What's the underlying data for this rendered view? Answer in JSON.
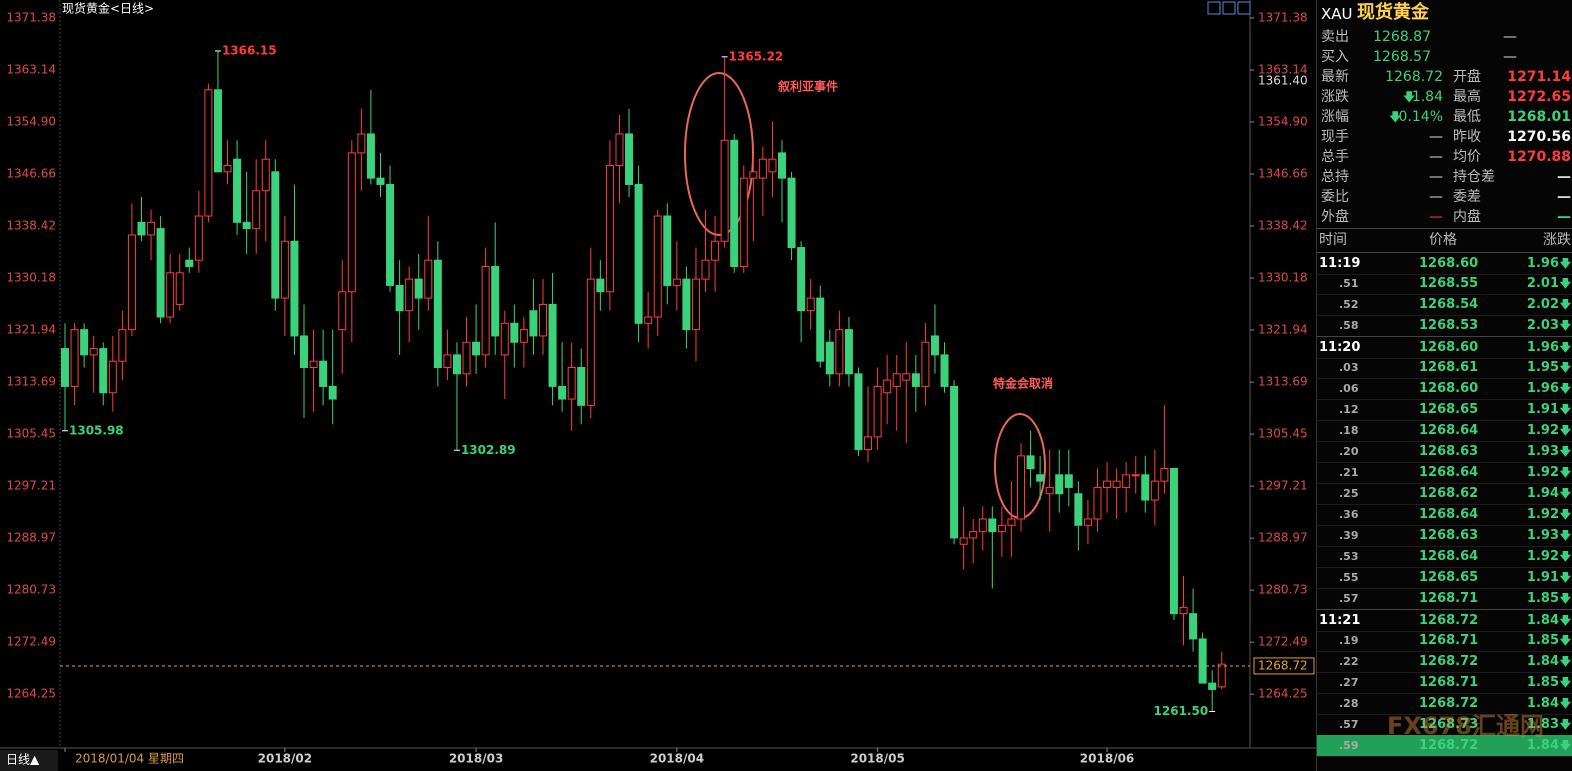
{
  "chart_data": {
    "type": "candlestick",
    "title": "现货黄金<日线>",
    "up_color": "#ff3c3c",
    "down_color": "#3ad27a",
    "ylim": [
      1255.72,
      1373.43
    ],
    "yticks": [
      1264.25,
      1272.49,
      1280.73,
      1288.97,
      1297.21,
      1305.45,
      1313.69,
      1321.94,
      1330.18,
      1338.42,
      1346.66,
      {
        "value": 1354.9,
        "label": "1354.90"
      },
      1363.14,
      1371.38
    ],
    "xticks": [
      {
        "value": 0,
        "label": "2018/01/04 星期四"
      },
      {
        "value": 23,
        "label": "2018/02"
      },
      {
        "value": 43,
        "label": "2018/03"
      },
      {
        "value": 64,
        "label": "2018/04"
      },
      {
        "value": 85,
        "label": "2018/05"
      },
      {
        "value": 109,
        "label": "2018/06"
      }
    ],
    "period_label": "日线▲",
    "open": [
      1319,
      1313,
      1322,
      1318,
      1319,
      1312,
      1317,
      1322,
      1339,
      1337,
      1338,
      1324,
      1326,
      1333,
      1333,
      1340,
      1360,
      1347,
      1349,
      1339,
      1338,
      1344,
      1347,
      1327,
      1336,
      1321,
      1316,
      1317,
      1313,
      1322,
      1328,
      1350,
      1353,
      1346,
      1345,
      1329,
      1325,
      1330,
      1327,
      1333,
      1316,
      1318,
      1315,
      1320,
      1318,
      1332,
      1318,
      1323,
      1320,
      1325,
      1321,
      1326,
      1313,
      1311,
      1316,
      1310,
      1330,
      1328,
      1348,
      1353,
      1345,
      1323,
      1324,
      1340,
      1329,
      1330,
      1322,
      1330,
      1333,
      1336,
      1352,
      1332,
      1346,
      1346,
      1347,
      1350,
      1346,
      1335,
      1325,
      1327,
      1320,
      1315,
      1322,
      1315,
      1303,
      1305,
      1312,
      1313,
      1314,
      1315,
      1313,
      1321,
      1318,
      1313,
      1288,
      1289,
      1290,
      1292,
      1290,
      1291,
      1292,
      1302,
      1299,
      1296,
      1299,
      1299,
      1296,
      1291,
      1292,
      1297,
      1297,
      1297,
      1299,
      1299,
      1295,
      1298,
      1300,
      1277,
      1277,
      1273,
      1266,
      1265.4
    ],
    "high": [
      1323,
      1323,
      1323,
      1321,
      1320,
      1321,
      1325,
      1342,
      1343,
      1341,
      1340,
      1334,
      1334,
      1335,
      1344,
      1361,
      1366.15,
      1352,
      1352,
      1347,
      1349,
      1352,
      1349,
      1340,
      1345,
      1326,
      1322,
      1322,
      1322,
      1333,
      1352,
      1357,
      1360,
      1350,
      1348,
      1333,
      1332,
      1334,
      1340,
      1336,
      1322,
      1320,
      1324,
      1326,
      1335,
      1339,
      1325,
      1326,
      1324,
      1330,
      1330,
      1331,
      1320,
      1320,
      1319,
      1335,
      1333,
      1352,
      1356,
      1357,
      1348,
      1328,
      1341,
      1342,
      1336,
      1332,
      1335,
      1341,
      1340,
      1365.22,
      1353,
      1348,
      1350,
      1351,
      1355,
      1352,
      1347,
      1336,
      1330,
      1329,
      1322,
      1325,
      1324,
      1316,
      1313,
      1316,
      1318,
      1318,
      1320,
      1318,
      1323,
      1326,
      1320,
      1314,
      1294,
      1292,
      1294,
      1294,
      1294,
      1298,
      1304,
      1306,
      1302,
      1303,
      1303,
      1303,
      1298,
      1295,
      1300,
      1301,
      1300,
      1301,
      1302,
      1302,
      1303,
      1310,
      1300,
      1283,
      1281,
      1274,
      1268,
      1271
    ],
    "low": [
      1305.98,
      1310,
      1316,
      1312,
      1310,
      1309,
      1314,
      1321,
      1336,
      1333,
      1323,
      1323,
      1325,
      1331,
      1331,
      1339,
      1347,
      1345,
      1337,
      1334,
      1334,
      1336,
      1325,
      1321,
      1318,
      1308,
      1309,
      1310,
      1307,
      1315,
      1320,
      1344,
      1345,
      1343,
      1328,
      1318,
      1320,
      1322,
      1325,
      1313,
      1314,
      1302.89,
      1313,
      1315,
      1316,
      1318,
      1311,
      1316,
      1316,
      1318,
      1318,
      1310,
      1309,
      1306,
      1307,
      1308,
      1325,
      1325,
      1342,
      1343,
      1320,
      1319,
      1321,
      1326,
      1325,
      1319,
      1317,
      1328,
      1328,
      1335,
      1331,
      1331,
      1336,
      1340,
      1343,
      1339,
      1333,
      1320,
      1322,
      1316,
      1313,
      1313,
      1313,
      1302,
      1301,
      1303,
      1307,
      1306,
      1304,
      1309,
      1310,
      1315,
      1312,
      1288,
      1284,
      1285,
      1287,
      1281,
      1286,
      1286,
      1290,
      1297,
      1295,
      1290,
      1293,
      1294,
      1287,
      1288,
      1290,
      1293,
      1292,
      1293,
      1296,
      1293,
      1291,
      1296,
      1276,
      1272,
      1271,
      1266,
      1261.5,
      1265
    ],
    "close": [
      1313,
      1322,
      1318,
      1319,
      1312,
      1317,
      1322,
      1337,
      1337,
      1339,
      1324,
      1331,
      1331,
      1332,
      1340,
      1360,
      1347,
      1348,
      1339,
      1338,
      1344,
      1349,
      1327,
      1336,
      1321,
      1316,
      1317,
      1313,
      1311,
      1328,
      1350,
      1353,
      1346,
      1345,
      1329,
      1325,
      1330,
      1327,
      1333,
      1316,
      1318,
      1315,
      1320,
      1318,
      1332,
      1321,
      1323,
      1320,
      1322,
      1321,
      1326,
      1313,
      1311,
      1316,
      1310,
      1330,
      1328,
      1348,
      1353,
      1345,
      1323,
      1324,
      1340,
      1329,
      1330,
      1322,
      1330,
      1333,
      1336,
      1352,
      1332,
      1346,
      1347,
      1349,
      1349,
      1346,
      1335,
      1325,
      1327,
      1317,
      1315,
      1322,
      1315,
      1303,
      1305,
      1313,
      1314,
      1315,
      1315,
      1313,
      1320,
      1318,
      1313,
      1289,
      1289,
      1290,
      1292,
      1290,
      1291,
      1292,
      1302,
      1300,
      1298,
      1297,
      1296,
      1297,
      1291,
      1292,
      1297,
      1298,
      1298,
      1299,
      1299,
      1295,
      1298,
      1300,
      1277,
      1278,
      1273,
      1266,
      1265,
      1269
    ],
    "high_labels": [
      1366.15,
      1365.22
    ],
    "low_labels": [
      1305.98,
      1302.89,
      {
        "value": 1261.5,
        "label": "1261.50"
      }
    ],
    "cursor_price": {
      "value": 1361.4,
      "label": "1361.40"
    },
    "last_price": 1268.72,
    "last_price_color": "#e8a030",
    "annotations": [
      "叙利亚事件",
      "特金会取消"
    ]
  },
  "panel": {
    "code": "XAU",
    "name": "现货黄金",
    "rows": [
      {
        "label": "卖出",
        "value": "1268.87",
        "value_color": "#3ad27a",
        "value2": "—",
        "value2_color": "#ddd"
      },
      {
        "label": "买入",
        "value": "1268.57",
        "value_color": "#3ad27a",
        "value2": "—",
        "value2_color": "#ddd"
      },
      {
        "label": "最新",
        "value": "1268.72",
        "value_color": "#3ad27a",
        "label2": "开盘",
        "value2": "1271.14",
        "value2_color": "#ff3c3c"
      },
      {
        "label": "涨跌",
        "value": "1.84",
        "value_color": "#3ad27a",
        "trend": "down",
        "label2": "最高",
        "value2": "1272.65",
        "value2_color": "#ff3c3c"
      },
      {
        "label": "涨幅",
        "value": "0.14%",
        "value_color": "#3ad27a",
        "trend": "down",
        "label2": "最低",
        "value2": "1268.01",
        "value2_color": "#3ad27a"
      },
      {
        "label": "现手",
        "value": "—",
        "value_color": "#ddd",
        "label2": "昨收",
        "value2": "1270.56",
        "value2_color": "#ffffff"
      },
      {
        "label": "总手",
        "value": "—",
        "value_color": "#ddd",
        "label2": "均价",
        "value2": "1270.88",
        "value2_color": "#ff3c3c"
      },
      {
        "label": "总持",
        "value": "—",
        "value_color": "#ddd",
        "label2": "持仓差",
        "value2": "—",
        "value2_color": "#ddd"
      },
      {
        "label": "委比",
        "value": "—",
        "value_color": "#ddd",
        "label2": "委差",
        "value2": "—",
        "value2_color": "#ddd"
      },
      {
        "label": "外盘",
        "value": "—",
        "value_color": "#ff3c3c",
        "label2": "内盘",
        "value2": "—",
        "value2_color": "#3ad27a"
      }
    ],
    "ticks_header": [
      "时间",
      "价格",
      "涨跌"
    ],
    "ticks": [
      {
        "time": "11:19",
        "price": "1268.60",
        "change": "1.96"
      },
      {
        "time": ".51",
        "price": "1268.55",
        "change": "2.01"
      },
      {
        "time": ".52",
        "price": "1268.54",
        "change": "2.02"
      },
      {
        "time": ".58",
        "price": "1268.53",
        "change": "2.03"
      },
      {
        "time": "11:20",
        "price": "1268.60",
        "change": "1.96"
      },
      {
        "time": ".03",
        "price": "1268.61",
        "change": "1.95"
      },
      {
        "time": ".06",
        "price": "1268.60",
        "change": "1.96"
      },
      {
        "time": ".12",
        "price": "1268.65",
        "change": "1.91"
      },
      {
        "time": ".18",
        "price": "1268.64",
        "change": "1.92"
      },
      {
        "time": ".20",
        "price": "1268.63",
        "change": "1.93"
      },
      {
        "time": ".21",
        "price": "1268.64",
        "change": "1.92"
      },
      {
        "time": ".25",
        "price": "1268.62",
        "change": "1.94"
      },
      {
        "time": ".36",
        "price": "1268.64",
        "change": "1.92"
      },
      {
        "time": ".39",
        "price": "1268.63",
        "change": "1.93"
      },
      {
        "time": ".53",
        "price": "1268.64",
        "change": "1.92"
      },
      {
        "time": ".55",
        "price": "1268.65",
        "change": "1.91"
      },
      {
        "time": ".57",
        "price": "1268.71",
        "change": "1.85"
      },
      {
        "time": "11:21",
        "price": "1268.72",
        "change": "1.84"
      },
      {
        "time": ".19",
        "price": "1268.71",
        "change": "1.85"
      },
      {
        "time": ".22",
        "price": "1268.72",
        "change": "1.84"
      },
      {
        "time": ".27",
        "price": "1268.71",
        "change": "1.85"
      },
      {
        "time": ".28",
        "price": "1268.72",
        "change": "1.84"
      },
      {
        "time": ".57",
        "price": "1268.73",
        "change": "1.83"
      },
      {
        "time": ".59",
        "price": "1268.72",
        "change": "1.84"
      }
    ],
    "watermark": "FX678汇通网"
  }
}
